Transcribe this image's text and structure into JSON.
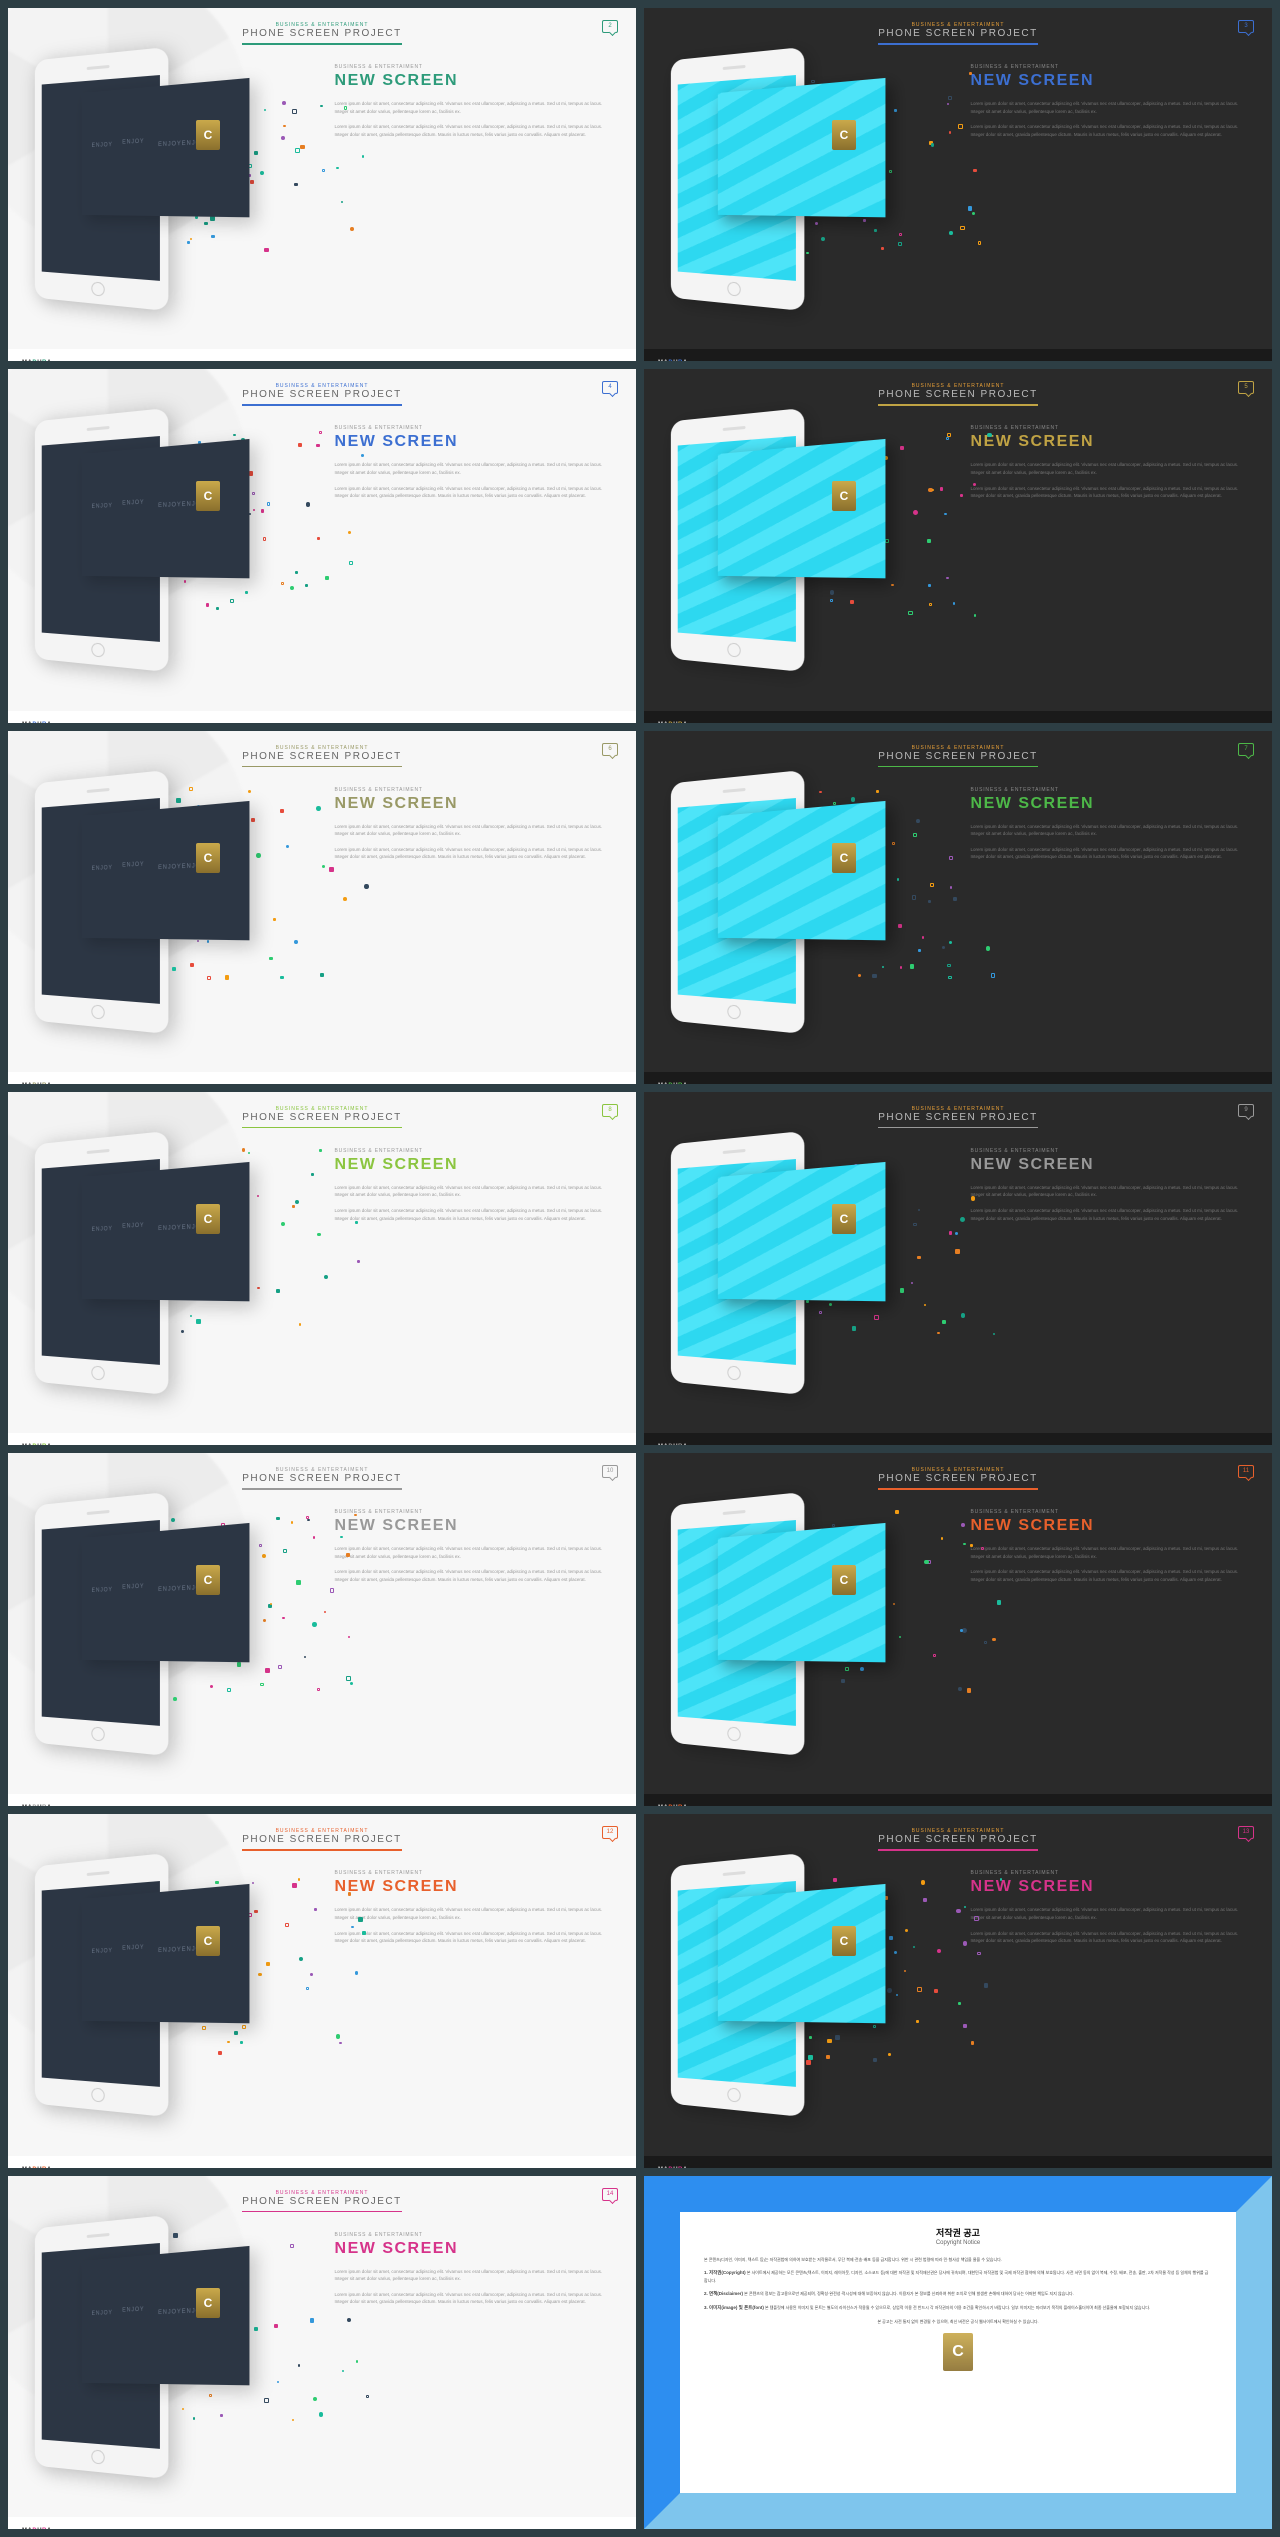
{
  "subtitle": "BUSINESS & ENTERTAIMENT",
  "title": "PHONE SCREEN PROJECT",
  "text_sub": "BUSINESS & ENTERTAIMENT",
  "text_hdr": "NEW SCREEN",
  "para1": "Lorem ipsum dolor sit amet, consectetur adipiscing elit. Vivamus nec erat ullamcorper, adipiscing a metus. Sed ut mi, tempus ac lacus. Integer sit amet dolor varius, pellentesque lorem ac, facilisis ex.",
  "para2": "Lorem ipsum dolor sit amet, consectetur adipiscing elit. Vivamus nec erat ullamcorper, adipiscing a metus. Sed ut mi, tempus ac lacus. Integer dolor sit amet, gravida pellentesque dictum. Mauris in luctus metus, felis varius justo ex convallis. Aliquam est placerat.",
  "footer_logo": "MADURA",
  "footer_accent_1": "D",
  "footer_accent_2": "R",
  "screen_txt": "ENJOY",
  "badge_c": "C",
  "slides": [
    {
      "num": "2",
      "theme": "light",
      "accent": "#2d9b7a",
      "sub_color": "#2d9b7a"
    },
    {
      "num": "3",
      "theme": "dark",
      "accent": "#3c6fd1",
      "sub_color": "#e8a038"
    },
    {
      "num": "4",
      "theme": "light",
      "accent": "#3c6fd1",
      "sub_color": "#3c6fd1"
    },
    {
      "num": "5",
      "theme": "dark",
      "accent": "#c0a344",
      "sub_color": "#e8a038"
    },
    {
      "num": "6",
      "theme": "light",
      "accent": "#999966",
      "sub_color": "#999966"
    },
    {
      "num": "7",
      "theme": "dark",
      "accent": "#4db848",
      "sub_color": "#e8a038"
    },
    {
      "num": "8",
      "theme": "light",
      "accent": "#8bc540",
      "sub_color": "#8bc540"
    },
    {
      "num": "9",
      "theme": "dark",
      "accent": "#999999",
      "sub_color": "#e8a038"
    },
    {
      "num": "10",
      "theme": "light",
      "accent": "#999999",
      "sub_color": "#999999"
    },
    {
      "num": "11",
      "theme": "dark",
      "accent": "#e8602c",
      "sub_color": "#e8a038"
    },
    {
      "num": "12",
      "theme": "light",
      "accent": "#e8602c",
      "sub_color": "#e8602c"
    },
    {
      "num": "13",
      "theme": "dark",
      "accent": "#d6338a",
      "sub_color": "#e8a038"
    },
    {
      "num": "14",
      "theme": "light",
      "accent": "#d6338a",
      "sub_color": "#d6338a"
    }
  ],
  "particle_colors": [
    "#e74c3c",
    "#3498db",
    "#2ecc71",
    "#f39c12",
    "#9b59b6",
    "#1abc9c",
    "#e67e22",
    "#d6338a",
    "#34495e",
    "#16a085"
  ],
  "copyright": {
    "title": "저작권 공고",
    "sub": "Copyright Notice",
    "line0": "본 콘텐츠(디자인, 이미지, 텍스트 등)는 저작권법에 의하여 보호받는 저작물로서, 무단 복제·전송·배포 등을 금지합니다. 위반 시 관련 법령에 따라 민·형사상 책임을 물을 수 있습니다.",
    "h1": "1. 저작권(Copyright)",
    "p1": "본 사이트에서 제공하는 모든 콘텐츠(텍스트, 이미지, 레이아웃, 디자인, 소스코드 등)에 대한 저작권 및 지적재산권은 당사에 귀속되며, 대한민국 저작권법 및 국제 저작권 협약에 의해 보호됩니다. 사전 서면 동의 없이 복제, 수정, 배포, 전송, 출판, 2차 저작물 작성 등 일체의 행위를 금합니다.",
    "h2": "2. 면책(Disclaimer)",
    "p2": "본 콘텐츠의 정보는 참고용으로만 제공되며, 정확성·완전성·적시성에 대해 보증하지 않습니다. 이용자가 본 정보를 신뢰하여 취한 조치로 인해 발생한 손해에 대하여 당사는 어떠한 책임도 지지 않습니다.",
    "h3": "3. 이미지(image) 및 폰트(font)",
    "p3": "본 템플릿에 사용된 이미지 및 폰트는 별도의 라이선스가 적용될 수 있으므로, 상업적 이용 전 반드시 각 저작권자의 이용 조건을 확인하시기 바랍니다. 일부 이미지는 미리보기 목적의 플레이스홀더이며 최종 산출물에 포함되지 않습니다.",
    "foot": "본 공고는 사전 통지 없이 변경될 수 있으며, 최신 버전은 공식 웹사이트에서 확인하실 수 있습니다."
  }
}
